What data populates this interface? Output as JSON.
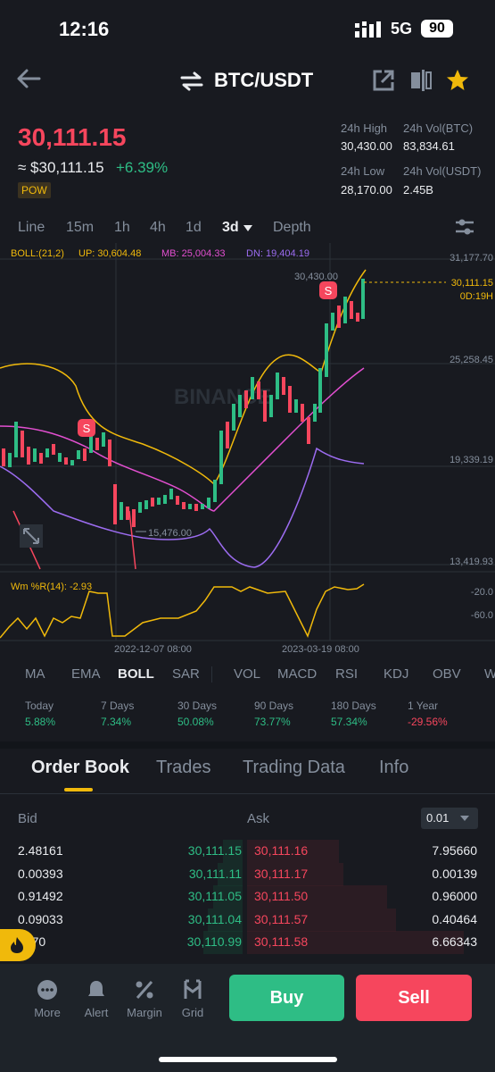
{
  "status": {
    "time": "12:16",
    "network": "5G",
    "battery": "90"
  },
  "header": {
    "pair": "BTC/USDT"
  },
  "price": {
    "last": "30,111.15",
    "approx": "≈ $30,111.15",
    "change": "+6.39%",
    "tag": "POW",
    "stats": [
      {
        "label": "24h High",
        "value": "30,430.00"
      },
      {
        "label": "24h Vol(BTC)",
        "value": "83,834.61"
      },
      {
        "label": "24h Low",
        "value": "28,170.00"
      },
      {
        "label": "24h Vol(USDT)",
        "value": "2.45B"
      }
    ]
  },
  "timeframes": [
    "Line",
    "15m",
    "1h",
    "4h",
    "1d",
    "3d",
    "Depth"
  ],
  "active_timeframe": "3d",
  "chart": {
    "boll_label": "BOLL:(21,2)",
    "boll_up": "UP: 30,604.48",
    "boll_mb": "MB: 25,004.33",
    "boll_dn": "DN: 19,404.19",
    "y_ticks": [
      "31,177.70",
      "25,258.45",
      "19,339.19",
      "13,419.93"
    ],
    "current_price_tag": "30,111.15",
    "countdown": "0D:19H",
    "high_label": "30,430.00",
    "low_label": "15,476.00",
    "wr_label": "Wm %R(14): -2.93",
    "wr_ticks": [
      "-20.0",
      "-60.0"
    ],
    "x_labels": [
      "2022-12-07 08:00",
      "2023-03-19 08:00"
    ],
    "sell_marker": "S",
    "watermark": "BINANCE",
    "colors": {
      "up": "#2ebd85",
      "down": "#f6465d",
      "boll_up": "#f0b90b",
      "boll_mb": "#e24fd0",
      "boll_dn": "#9c6cf0"
    }
  },
  "indicators": [
    "MA",
    "EMA",
    "BOLL",
    "SAR",
    "VOL",
    "MACD",
    "RSI",
    "KDJ",
    "OBV",
    "W"
  ],
  "performance": [
    {
      "label": "Today",
      "value": "5.88%",
      "dir": "up"
    },
    {
      "label": "7 Days",
      "value": "7.34%",
      "dir": "up"
    },
    {
      "label": "30 Days",
      "value": "50.08%",
      "dir": "up"
    },
    {
      "label": "90 Days",
      "value": "73.77%",
      "dir": "up"
    },
    {
      "label": "180 Days",
      "value": "57.34%",
      "dir": "up"
    },
    {
      "label": "1 Year",
      "value": "-29.56%",
      "dir": "down"
    }
  ],
  "tabs": [
    "Order Book",
    "Trades",
    "Trading Data",
    "Info"
  ],
  "orderbook": {
    "bid_header": "Bid",
    "ask_header": "Ask",
    "precision": "0.01",
    "rows": [
      {
        "bid_qty": "2.48161",
        "bid_price": "30,111.15",
        "ask_price": "30,111.16",
        "ask_qty": "7.95660",
        "bid_depth": 0.08,
        "ask_depth": 0.38
      },
      {
        "bid_qty": "0.00393",
        "bid_price": "30,111.11",
        "ask_price": "30,111.17",
        "ask_qty": "0.00139",
        "bid_depth": 0.1,
        "ask_depth": 0.4
      },
      {
        "bid_qty": "0.91492",
        "bid_price": "30,111.05",
        "ask_price": "30,111.50",
        "ask_qty": "0.96000",
        "bid_depth": 0.12,
        "ask_depth": 0.58
      },
      {
        "bid_qty": "0.09033",
        "bid_price": "30,111.04",
        "ask_price": "30,111.57",
        "ask_qty": "0.40464",
        "bid_depth": 0.14,
        "ask_depth": 0.62
      },
      {
        "bid_qty": "2670",
        "bid_price": "30,110.99",
        "ask_price": "30,111.58",
        "ask_qty": "6.66343",
        "bid_depth": 0.16,
        "ask_depth": 0.9
      }
    ]
  },
  "bottom_nav": [
    "More",
    "Alert",
    "Margin",
    "Grid"
  ],
  "actions": {
    "buy": "Buy",
    "sell": "Sell"
  }
}
